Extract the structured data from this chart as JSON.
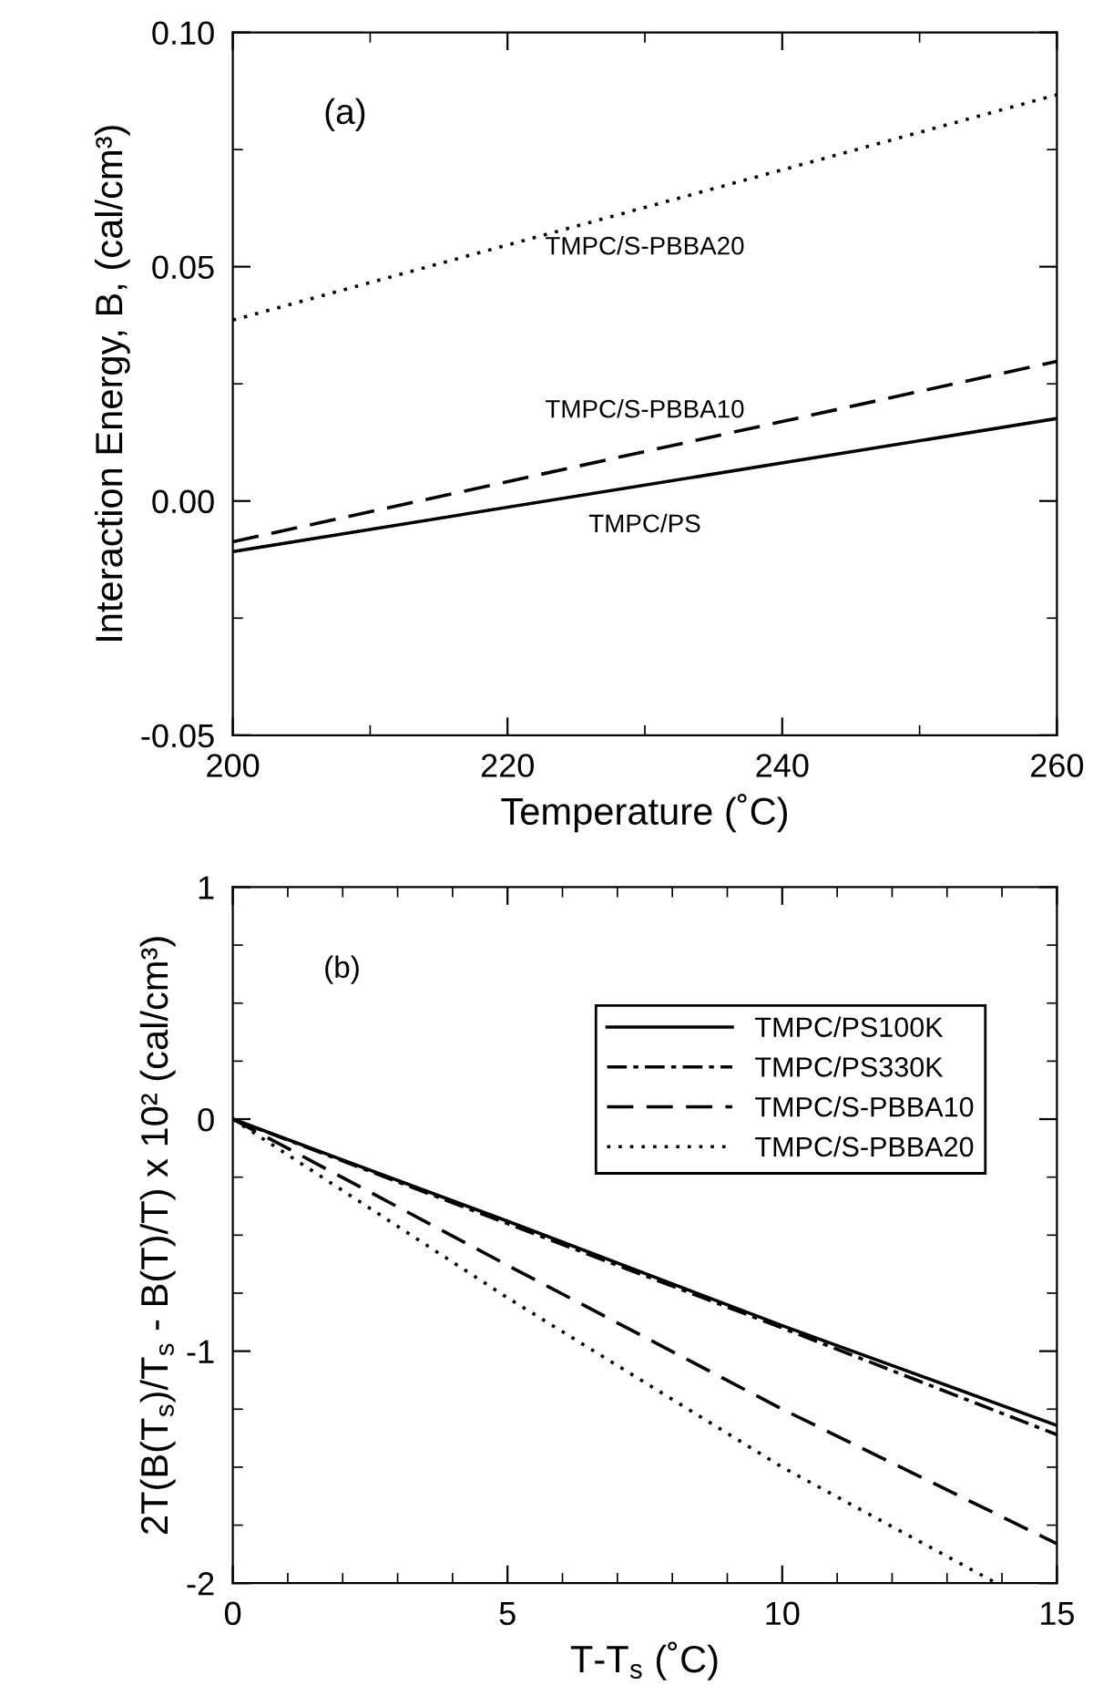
{
  "chart_data": [
    {
      "type": "line",
      "xlabel": "Temperature (˚C)",
      "ylabel": "Interaction Energy, B, (cal/cm³)",
      "xlim": [
        200,
        260
      ],
      "xticks": [
        200,
        {
          "value": 210,
          "label": null
        },
        220,
        {
          "value": 230,
          "label": null
        },
        240,
        {
          "value": 250,
          "label": null
        },
        260
      ],
      "ylim": [
        -0.05,
        0.1
      ],
      "yticks": [
        {
          "value": -0.05,
          "label": "-0.05"
        },
        {
          "value": -0.025,
          "label": null
        },
        {
          "value": 0.0,
          "label": "0.00"
        },
        {
          "value": 0.025,
          "label": null
        },
        {
          "value": 0.05,
          "label": "0.05"
        },
        {
          "value": 0.075,
          "label": null
        },
        {
          "value": 0.1,
          "label": "0.10"
        }
      ],
      "annotations": [
        "(a)"
      ],
      "grid": false,
      "legend": false,
      "marker": "none",
      "series": [
        {
          "name": "TMPC/PS",
          "color": "#000000",
          "line_style": "solid",
          "x": [
            200,
            260
          ],
          "values": [
            -0.0108,
            0.0176
          ]
        },
        {
          "name": "TMPC/S-PBBA10",
          "color": "#000000",
          "line_style": "dashed",
          "x": [
            200,
            260
          ],
          "values": [
            -0.0087,
            0.0298
          ]
        },
        {
          "name": "TMPC/S-PBBA20",
          "color": "#000000",
          "line_style": "dotted",
          "x": [
            200,
            260
          ],
          "values": [
            0.0386,
            0.0867
          ]
        }
      ]
    },
    {
      "type": "line",
      "xlabel": "T-T$_{s}$ (˚C)",
      "ylabel": "2T(B(T$_{s}$)/T$_{s}$ - B(T)/T) x 10² (cal/cm³)",
      "xlim": [
        0,
        15
      ],
      "xticks": [
        0,
        {
          "value": 1,
          "label": null
        },
        {
          "value": 2,
          "label": null
        },
        {
          "value": 3,
          "label": null
        },
        {
          "value": 4,
          "label": null
        },
        5,
        {
          "value": 6,
          "label": null
        },
        {
          "value": 7,
          "label": null
        },
        {
          "value": 8,
          "label": null
        },
        {
          "value": 9,
          "label": null
        },
        10,
        {
          "value": 11,
          "label": null
        },
        {
          "value": 12,
          "label": null
        },
        {
          "value": 13,
          "label": null
        },
        {
          "value": 14,
          "label": null
        },
        15
      ],
      "ylim": [
        -2,
        1
      ],
      "yticks": [
        -2,
        {
          "value": -1.75,
          "label": null
        },
        {
          "value": -1.5,
          "label": null
        },
        {
          "value": -1.25,
          "label": null
        },
        -1,
        {
          "value": -0.75,
          "label": null
        },
        {
          "value": -0.5,
          "label": null
        },
        {
          "value": -0.25,
          "label": null
        },
        0,
        {
          "value": 0.25,
          "label": null
        },
        {
          "value": 0.5,
          "label": null
        },
        {
          "value": 0.75,
          "label": null
        },
        1
      ],
      "annotations": [
        "(b)"
      ],
      "grid": false,
      "legend": "top right",
      "marker": "none",
      "series": [
        {
          "name": "TMPC/PS100K",
          "color": "#000000",
          "line_style": "solid",
          "x": [
            0,
            5,
            10,
            15
          ],
          "values": [
            0,
            -0.44,
            -0.89,
            -1.32
          ]
        },
        {
          "name": "TMPC/PS330K",
          "color": "#000000",
          "line_style": "dashdot",
          "x": [
            0,
            5,
            10,
            15
          ],
          "values": [
            0,
            -0.45,
            -0.9,
            -1.36
          ]
        },
        {
          "name": "TMPC/S-PBBA10",
          "color": "#000000",
          "line_style": "dashed",
          "x": [
            0,
            5,
            10,
            15
          ],
          "values": [
            0,
            -0.63,
            -1.25,
            -1.83
          ]
        },
        {
          "name": "TMPC/S-PBBA20",
          "color": "#000000",
          "line_style": "dotted",
          "x": [
            0,
            5,
            10,
            13.9
          ],
          "values": [
            0,
            -0.77,
            -1.5,
            -2.0
          ]
        }
      ]
    }
  ]
}
